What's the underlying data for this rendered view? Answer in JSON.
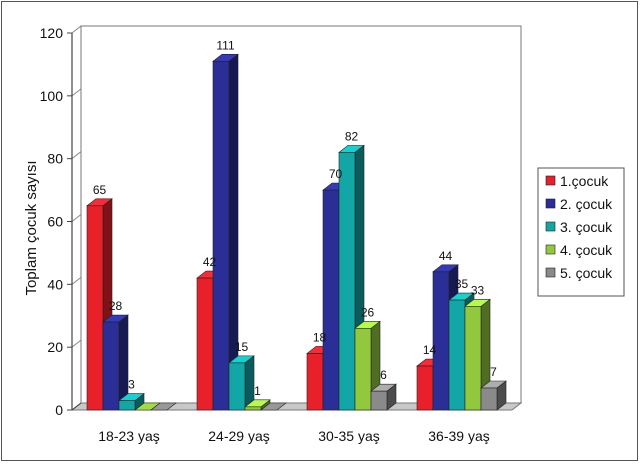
{
  "chart_data": {
    "type": "bar",
    "title": "",
    "xlabel": "",
    "ylabel": "Toplam çocuk sayısı",
    "ylim": [
      0,
      120
    ],
    "yticks": [
      0,
      20,
      40,
      60,
      80,
      100,
      120
    ],
    "grid": true,
    "legend_position": "right",
    "categories": [
      "18-23 yaş",
      "24-29 yaş",
      "30-35 yaş",
      "36-39 yaş"
    ],
    "series": [
      {
        "name": "1.çocuk",
        "color": "#e8202a",
        "values": [
          65,
          42,
          18,
          14
        ]
      },
      {
        "name": "2. çocuk",
        "color": "#2a2e96",
        "values": [
          28,
          111,
          70,
          44
        ]
      },
      {
        "name": "3. çocuk",
        "color": "#13a6a6",
        "values": [
          3,
          15,
          82,
          35
        ]
      },
      {
        "name": "4. çocuk",
        "color": "#92c83e",
        "values": [
          0,
          1,
          26,
          33
        ]
      },
      {
        "name": "5. çocuk",
        "color": "#8a8a8a",
        "values": [
          0,
          0,
          6,
          7
        ]
      }
    ],
    "data_labels": [
      [
        "65",
        "28",
        "3",
        "",
        ""
      ],
      [
        "42",
        "111",
        "15",
        "1",
        ""
      ],
      [
        "18",
        "70",
        "82",
        "26",
        "6"
      ],
      [
        "14",
        "44",
        "35",
        "33",
        "7"
      ]
    ]
  }
}
